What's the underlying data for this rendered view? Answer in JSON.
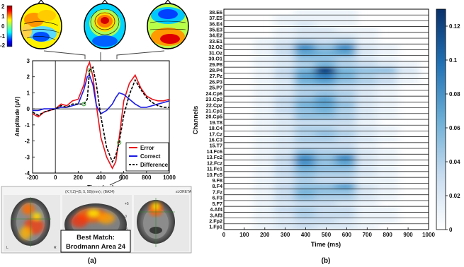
{
  "panel_a": {
    "caption": "(a)",
    "colorbar_ticks": [
      "2",
      "1",
      "0",
      "-1",
      "-2"
    ],
    "erp_chart": {
      "xlabel": "Time (ms)",
      "ylabel": "Amplitude (µV)",
      "xticks": [
        "-200",
        "0",
        "200",
        "400",
        "600",
        "800",
        "1000"
      ],
      "yticks": [
        "3",
        "2",
        "1",
        "0",
        "-1",
        "-2",
        "-3",
        "-4"
      ],
      "legend": [
        "Error",
        "Correct",
        "Difference"
      ]
    },
    "mri": {
      "header_text": "(X,Y,Z)=(5, 5, 50)(mm) ; (BA24)",
      "corner_text": "sLORETA",
      "best_match_line1": "Best Match:",
      "best_match_line2": "Brodmann Area 24",
      "sagittal_ticks": [
        "+5",
        "0",
        "-5"
      ],
      "lr_labels": [
        "L",
        "R"
      ]
    }
  },
  "panel_b": {
    "caption": "(b)",
    "colorbar_ticks": [
      "0.12",
      "0.1",
      "0.08",
      "0.06",
      "0.04",
      "0.02",
      "0"
    ]
  },
  "chart_data": [
    {
      "type": "line",
      "xlabel": "Time (ms)",
      "ylabel": "Amplitude (µV)",
      "xlim": [
        -200,
        1000
      ],
      "ylim": [
        -4,
        3
      ],
      "x": [
        -200,
        -150,
        -100,
        -50,
        0,
        50,
        100,
        150,
        200,
        250,
        280,
        300,
        330,
        360,
        400,
        450,
        500,
        530,
        560,
        600,
        650,
        700,
        750,
        800,
        850,
        900,
        950,
        1000
      ],
      "series": [
        {
          "name": "Error",
          "color": "#e8141a",
          "style": "solid",
          "values": [
            -0.3,
            -0.5,
            -0.2,
            -0.1,
            0.0,
            0.3,
            0.2,
            0.5,
            0.6,
            1.5,
            2.6,
            2.9,
            2.0,
            0.2,
            -1.8,
            -3.0,
            -3.7,
            -3.3,
            -1.8,
            0.5,
            1.6,
            2.1,
            1.3,
            0.8,
            0.6,
            0.5,
            0.5,
            0.6
          ]
        },
        {
          "name": "Correct",
          "color": "#1a1ae6",
          "style": "solid",
          "values": [
            -0.1,
            -0.1,
            0.0,
            0.0,
            0.0,
            0.1,
            0.1,
            0.2,
            0.3,
            1.2,
            2.0,
            2.1,
            1.5,
            0.2,
            -0.3,
            -0.1,
            0.3,
            0.7,
            1.0,
            0.9,
            0.6,
            0.3,
            0.1,
            0.1,
            0.2,
            0.3,
            0.4,
            0.5
          ]
        },
        {
          "name": "Difference",
          "color": "#000000",
          "style": "dashed",
          "values": [
            -0.2,
            -0.4,
            -0.2,
            -0.1,
            0.0,
            0.2,
            0.1,
            0.3,
            0.3,
            0.3,
            0.6,
            2.4,
            2.6,
            1.5,
            -0.5,
            -2.4,
            -3.3,
            -2.9,
            -2.1,
            -0.4,
            0.9,
            1.8,
            1.2,
            0.7,
            0.4,
            0.2,
            0.1,
            0.1
          ]
        }
      ]
    },
    {
      "type": "heatmap",
      "xlabel": "Time (ms)",
      "ylabel": "Channels",
      "xlim": [
        0,
        1000
      ],
      "xticks": [
        "0",
        "100",
        "200",
        "300",
        "400",
        "500",
        "600",
        "700",
        "800",
        "900",
        "1000"
      ],
      "color_range": [
        0,
        0.13
      ],
      "channels": [
        "1.Fp1",
        "2.Fp2",
        "3.Af3",
        "4.Af4",
        "5.F7",
        "6.F3",
        "7.Fz",
        "8.F4",
        "9.F8",
        "10.Fc5",
        "11.Fc1",
        "12.Fcz",
        "13.Fc2",
        "14.Fc6",
        "15.T7",
        "16.C3",
        "17.Cz",
        "18.C4",
        "19.T8",
        "20.Cp5",
        "21.Cp1",
        "22.Cpz",
        "23.Cp2",
        "24.Cp6",
        "25.P7",
        "26.P3",
        "27.Pz",
        "28.P4",
        "29.P8",
        "30.O1",
        "31.Oz",
        "32.O2",
        "33.E1",
        "34.E2",
        "35.E3",
        "36.E4",
        "37.E5",
        "38.E6"
      ],
      "times": [
        100,
        200,
        300,
        400,
        500,
        600,
        700,
        800,
        900
      ],
      "values": [
        [
          0.0,
          0.01,
          0.02,
          0.03,
          0.02,
          0.02,
          0.01,
          0.0,
          0.0
        ],
        [
          0.0,
          0.01,
          0.02,
          0.03,
          0.03,
          0.02,
          0.01,
          0.01,
          0.0
        ],
        [
          0.0,
          0.01,
          0.02,
          0.04,
          0.03,
          0.03,
          0.01,
          0.01,
          0.0
        ],
        [
          0.0,
          0.01,
          0.03,
          0.04,
          0.03,
          0.03,
          0.01,
          0.01,
          0.0
        ],
        [
          0.0,
          0.01,
          0.02,
          0.03,
          0.03,
          0.02,
          0.01,
          0.0,
          0.0
        ],
        [
          0.0,
          0.01,
          0.03,
          0.05,
          0.04,
          0.04,
          0.02,
          0.01,
          0.0
        ],
        [
          0.0,
          0.01,
          0.03,
          0.06,
          0.05,
          0.05,
          0.02,
          0.01,
          0.0
        ],
        [
          0.0,
          0.01,
          0.03,
          0.05,
          0.05,
          0.07,
          0.02,
          0.01,
          0.0
        ],
        [
          0.0,
          0.01,
          0.02,
          0.04,
          0.03,
          0.03,
          0.01,
          0.01,
          0.0
        ],
        [
          0.0,
          0.01,
          0.03,
          0.05,
          0.04,
          0.04,
          0.02,
          0.01,
          0.0
        ],
        [
          0.0,
          0.01,
          0.03,
          0.06,
          0.05,
          0.05,
          0.02,
          0.01,
          0.0
        ],
        [
          0.0,
          0.01,
          0.03,
          0.08,
          0.05,
          0.07,
          0.02,
          0.01,
          0.0
        ],
        [
          0.0,
          0.01,
          0.03,
          0.08,
          0.05,
          0.08,
          0.02,
          0.01,
          0.0
        ],
        [
          0.0,
          0.01,
          0.02,
          0.05,
          0.04,
          0.04,
          0.02,
          0.01,
          0.0
        ],
        [
          0.0,
          0.01,
          0.02,
          0.03,
          0.03,
          0.03,
          0.01,
          0.0,
          0.0
        ],
        [
          0.0,
          0.01,
          0.02,
          0.04,
          0.04,
          0.03,
          0.02,
          0.01,
          0.0
        ],
        [
          0.0,
          0.01,
          0.02,
          0.04,
          0.05,
          0.04,
          0.02,
          0.01,
          0.0
        ],
        [
          0.0,
          0.01,
          0.02,
          0.04,
          0.04,
          0.03,
          0.02,
          0.01,
          0.0
        ],
        [
          0.0,
          0.01,
          0.02,
          0.03,
          0.03,
          0.03,
          0.01,
          0.0,
          0.0
        ],
        [
          0.0,
          0.01,
          0.02,
          0.05,
          0.05,
          0.04,
          0.02,
          0.01,
          0.0
        ],
        [
          0.0,
          0.01,
          0.03,
          0.05,
          0.06,
          0.04,
          0.02,
          0.01,
          0.0
        ],
        [
          0.0,
          0.01,
          0.03,
          0.06,
          0.07,
          0.05,
          0.02,
          0.01,
          0.0
        ],
        [
          0.0,
          0.01,
          0.03,
          0.05,
          0.07,
          0.04,
          0.02,
          0.01,
          0.0
        ],
        [
          0.0,
          0.01,
          0.02,
          0.04,
          0.05,
          0.04,
          0.02,
          0.01,
          0.0
        ],
        [
          0.0,
          0.01,
          0.02,
          0.04,
          0.04,
          0.03,
          0.02,
          0.01,
          0.0
        ],
        [
          0.0,
          0.01,
          0.02,
          0.06,
          0.07,
          0.05,
          0.04,
          0.03,
          0.01
        ],
        [
          0.0,
          0.01,
          0.03,
          0.07,
          0.09,
          0.06,
          0.04,
          0.03,
          0.01
        ],
        [
          0.0,
          0.01,
          0.03,
          0.06,
          0.12,
          0.06,
          0.05,
          0.05,
          0.02
        ],
        [
          0.0,
          0.01,
          0.02,
          0.04,
          0.06,
          0.04,
          0.03,
          0.02,
          0.01
        ],
        [
          0.0,
          0.01,
          0.02,
          0.05,
          0.05,
          0.04,
          0.02,
          0.01,
          0.0
        ],
        [
          0.0,
          0.01,
          0.03,
          0.07,
          0.06,
          0.07,
          0.02,
          0.01,
          0.0
        ],
        [
          0.0,
          0.01,
          0.03,
          0.08,
          0.05,
          0.08,
          0.02,
          0.01,
          0.0
        ],
        [
          0.0,
          0.01,
          0.02,
          0.04,
          0.03,
          0.04,
          0.01,
          0.0,
          0.0
        ],
        [
          0.0,
          0.0,
          0.01,
          0.02,
          0.02,
          0.02,
          0.01,
          0.0,
          0.0
        ],
        [
          0.0,
          0.0,
          0.01,
          0.02,
          0.02,
          0.01,
          0.01,
          0.0,
          0.0
        ],
        [
          0.0,
          0.0,
          0.01,
          0.02,
          0.01,
          0.01,
          0.0,
          0.0,
          0.0
        ],
        [
          0.0,
          0.0,
          0.01,
          0.01,
          0.01,
          0.01,
          0.0,
          0.0,
          0.0
        ],
        [
          0.0,
          0.0,
          0.0,
          0.01,
          0.01,
          0.01,
          0.0,
          0.0,
          0.0
        ]
      ]
    }
  ]
}
